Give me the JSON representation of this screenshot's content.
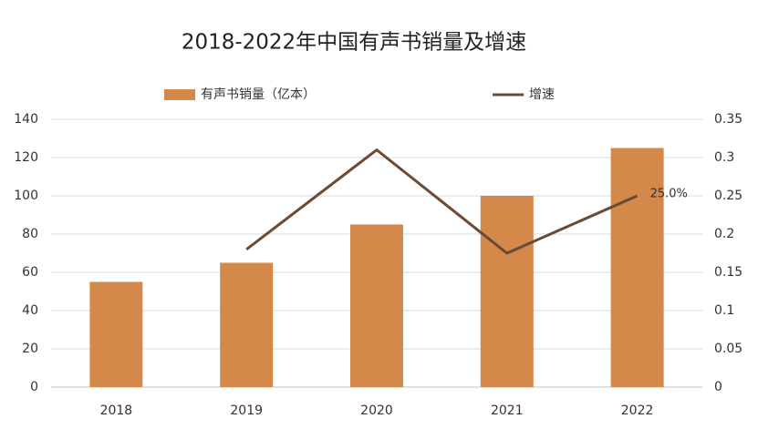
{
  "chart_data": {
    "type": "bar",
    "title": "2018-2022年中国有声书销量及增速",
    "categories": [
      "2018",
      "2019",
      "2020",
      "2021",
      "2022"
    ],
    "series": [
      {
        "name": "有声书销量（亿本）",
        "type": "bar",
        "color": "#d4894a",
        "values": [
          55,
          65,
          85,
          100,
          125
        ]
      },
      {
        "name": "增速",
        "type": "line",
        "axis": "y2",
        "color": "#6b4a33",
        "values": [
          null,
          0.18,
          0.31,
          0.175,
          0.25
        ],
        "value_labels": [
          null,
          null,
          null,
          null,
          "25.0%"
        ]
      }
    ],
    "ylim": [
      0,
      140
    ],
    "yticks": [
      0,
      20,
      40,
      60,
      80,
      100,
      120,
      140
    ],
    "y2lim": [
      0,
      0.35
    ],
    "y2ticks": [
      0,
      0.05,
      0.1,
      0.15,
      0.2,
      0.25,
      0.3,
      0.35
    ],
    "grid": true,
    "legend": "top"
  }
}
